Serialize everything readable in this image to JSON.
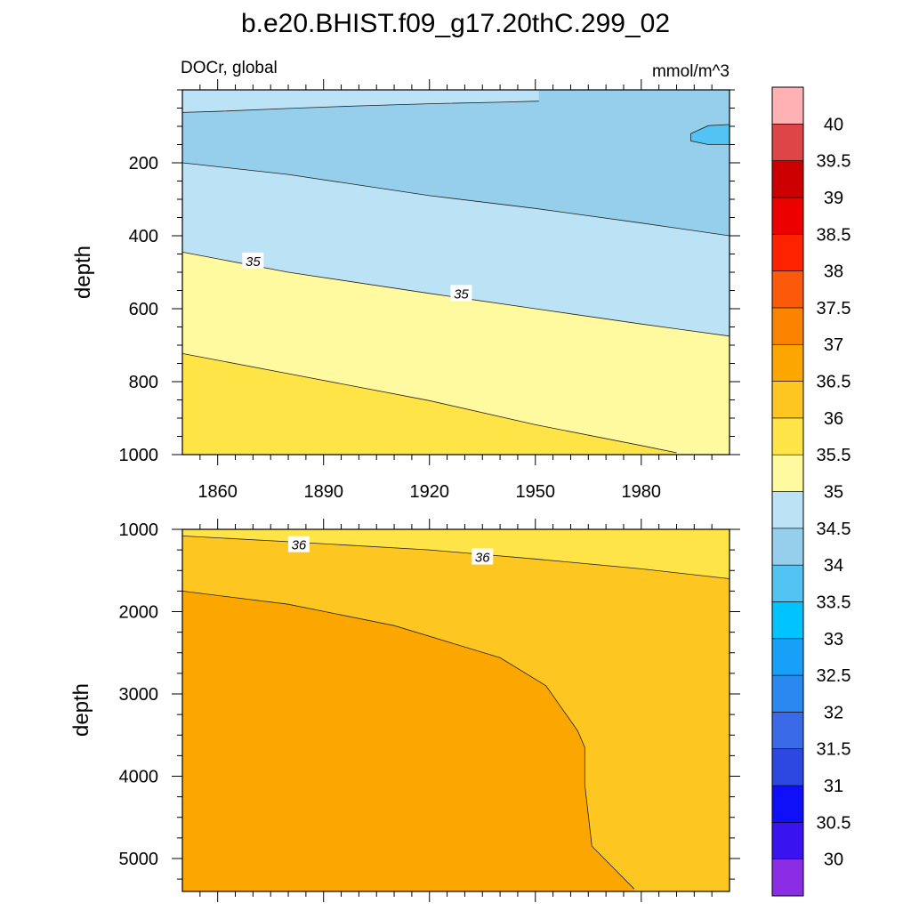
{
  "chart_data": {
    "type": "contour",
    "title": "b.e20.BHIST.f09_g17.20thC.299_02",
    "variable_label": "DOCr, global",
    "units_label": "mmol/m^3",
    "xlabel": "",
    "ylabel": "depth",
    "x_ticks": [
      "1860",
      "1890",
      "1920",
      "1950",
      "1980"
    ],
    "x_range": [
      1850,
      2005
    ],
    "colorbar": {
      "levels": [
        "30",
        "30.5",
        "31",
        "31.5",
        "32",
        "32.5",
        "33",
        "33.5",
        "34",
        "34.5",
        "35",
        "35.5",
        "36",
        "36.5",
        "37",
        "37.5",
        "38",
        "38.5",
        "39",
        "39.5",
        "40"
      ],
      "colors": [
        "#8c2de6",
        "#3a14f0",
        "#1010f8",
        "#2d48e0",
        "#3a6ae8",
        "#2a88f0",
        "#18a0f8",
        "#00c4ff",
        "#52c3f2",
        "#96cfec",
        "#bce2f6",
        "#fff9a0",
        "#ffe447",
        "#fdc620",
        "#fba700",
        "#fc8300",
        "#fb5a0a",
        "#ff2200",
        "#ed0000",
        "#cc0000",
        "#de4546",
        "#ffb1b4"
      ]
    },
    "panels": [
      {
        "name": "upper",
        "depth_range": [
          0,
          1000
        ],
        "y_ticks": [
          "200",
          "400",
          "600",
          "800",
          "1000"
        ],
        "y_tick_values": [
          200,
          400,
          600,
          800,
          1000
        ],
        "contour_labels": [
          {
            "text": "35",
            "year": 1870,
            "depth": 468
          },
          {
            "text": "35",
            "year": 1929,
            "depth": 557
          }
        ],
        "contours": [
          {
            "level": 34.5,
            "points": [
              [
                1850,
                62
              ],
              [
                1860,
                59
              ],
              [
                1880,
                51
              ],
              [
                1900,
                44
              ],
              [
                1920,
                38
              ],
              [
                1940,
                34
              ],
              [
                1951,
                31
              ]
            ]
          },
          {
            "level": 34.0,
            "points": [
              [
                1850,
                200
              ],
              [
                1880,
                232
              ],
              [
                1920,
                290
              ],
              [
                1950,
                325
              ],
              [
                1980,
                365
              ],
              [
                2005,
                400
              ]
            ]
          },
          {
            "level": 35.0,
            "points": [
              [
                1850,
                445
              ],
              [
                1880,
                500
              ],
              [
                1920,
                558
              ],
              [
                1950,
                600
              ],
              [
                1980,
                642
              ],
              [
                2005,
                675
              ]
            ]
          },
          {
            "level": 35.5,
            "points": [
              [
                1850,
                723
              ],
              [
                1880,
                778
              ],
              [
                1920,
                852
              ],
              [
                1950,
                918
              ],
              [
                1980,
                975
              ],
              [
                1990,
                995
              ]
            ]
          },
          {
            "level": 33.5,
            "points": [
              [
                1994,
                120
              ],
              [
                1999,
                98
              ],
              [
                2005,
                95
              ],
              [
                2005,
                150
              ],
              [
                1999,
                150
              ],
              [
                1994,
                140
              ]
            ]
          }
        ]
      },
      {
        "name": "lower",
        "depth_range": [
          1000,
          5400
        ],
        "y_ticks": [
          "1000",
          "2000",
          "3000",
          "4000",
          "5000"
        ],
        "y_tick_values": [
          1000,
          2000,
          3000,
          4000,
          5000
        ],
        "contour_labels": [
          {
            "text": "36",
            "year": 1883,
            "depth": 1180
          },
          {
            "text": "36",
            "year": 1935,
            "depth": 1330
          }
        ],
        "contours": [
          {
            "level": 36.0,
            "points": [
              [
                1850,
                1080
              ],
              [
                1880,
                1150
              ],
              [
                1920,
                1250
              ],
              [
                1950,
                1360
              ],
              [
                1980,
                1480
              ],
              [
                2005,
                1600
              ]
            ]
          },
          {
            "level": 36.5,
            "points": [
              [
                1850,
                1750
              ],
              [
                1880,
                1910
              ],
              [
                1910,
                2170
              ],
              [
                1940,
                2560
              ],
              [
                1953,
                2900
              ],
              [
                1962,
                3450
              ],
              [
                1964,
                3650
              ],
              [
                1964,
                4100
              ],
              [
                1966,
                4850
              ],
              [
                1978,
                5370
              ]
            ]
          }
        ]
      }
    ]
  }
}
